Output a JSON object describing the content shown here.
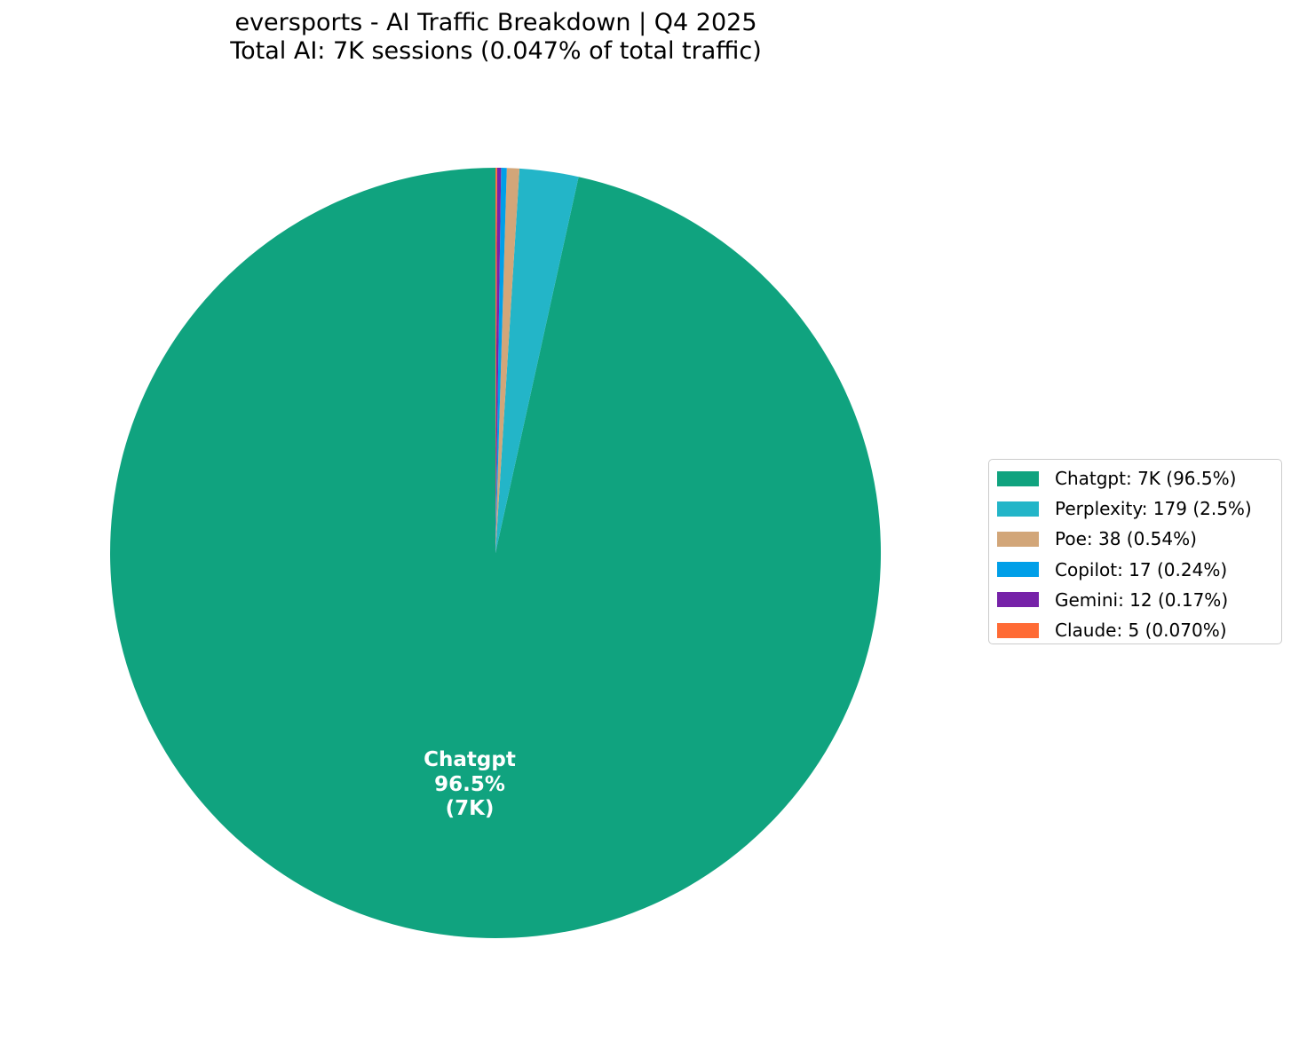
{
  "title": {
    "line1": "eversports - AI Traffic Breakdown | Q4 2025",
    "line2": "Total AI: 7K sessions (0.047% of total traffic)"
  },
  "chart_data": {
    "type": "pie",
    "start_angle": 90,
    "direction": "counterclockwise",
    "total_sessions_display": "7K",
    "total_share_of_traffic": "0.047%",
    "slices": [
      {
        "label": "Chatgpt",
        "value": 7000,
        "display_value": "7K",
        "pct": "96.5%",
        "legend_label": "Chatgpt: 7K (96.5%)",
        "color": "#10A37F"
      },
      {
        "label": "Perplexity",
        "value": 179,
        "display_value": "179",
        "pct": "2.5%",
        "legend_label": "Perplexity: 179 (2.5%)",
        "color": "#23B5C8"
      },
      {
        "label": "Poe",
        "value": 38,
        "display_value": "38",
        "pct": "0.54%",
        "legend_label": "Poe: 38 (0.54%)",
        "color": "#D2A679"
      },
      {
        "label": "Copilot",
        "value": 17,
        "display_value": "17",
        "pct": "0.24%",
        "legend_label": "Copilot: 17 (0.24%)",
        "color": "#009FE8"
      },
      {
        "label": "Gemini",
        "value": 12,
        "display_value": "12",
        "pct": "0.17%",
        "legend_label": "Gemini: 12 (0.17%)",
        "color": "#7622A8"
      },
      {
        "label": "Claude",
        "value": 5,
        "display_value": "5",
        "pct": "0.070%",
        "legend_label": "Claude: 5 (0.070%)",
        "color": "#FF6B35"
      }
    ],
    "center_label": {
      "line1": "Chatgpt",
      "line2": "96.5%",
      "line3": "(7K)"
    },
    "legend_position": "center-right"
  }
}
